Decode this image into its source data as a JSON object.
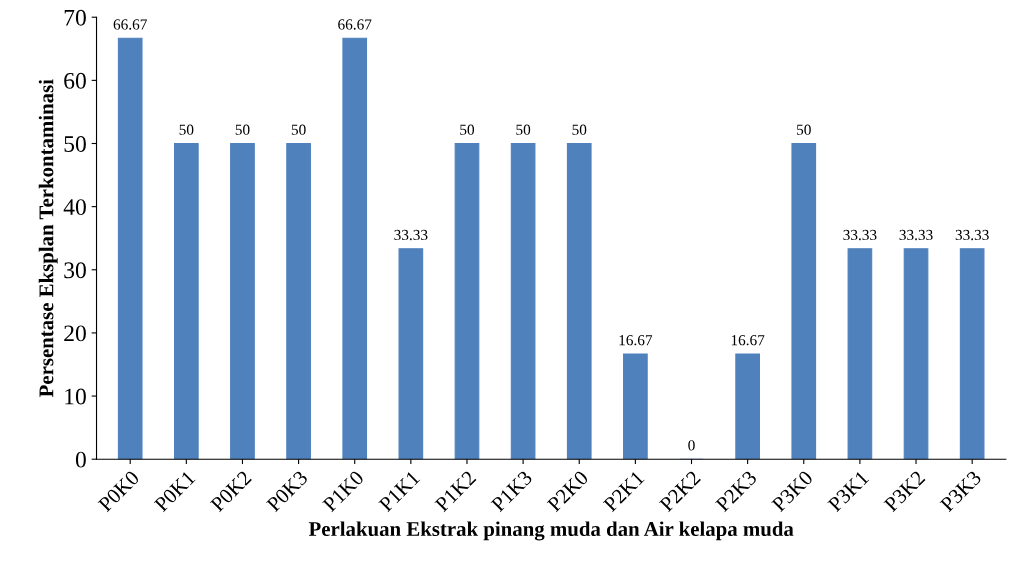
{
  "chart_data": {
    "type": "bar",
    "xlabel": "Perlakuan Ekstrak pinang muda dan Air kelapa muda",
    "ylabel": "Persentase Eksplan Terkontaminasi",
    "categories": [
      "P0K0",
      "P0K1",
      "P0K2",
      "P0K3",
      "P1K0",
      "P1K1",
      "P1K2",
      "P1K3",
      "P2K0",
      "P2K1",
      "P2K2",
      "P2K3",
      "P3K0",
      "P3K1",
      "P3K2",
      "P3K3"
    ],
    "values": [
      66.67,
      50,
      50,
      50,
      66.67,
      33.33,
      50,
      50,
      50,
      16.67,
      0,
      16.67,
      50,
      33.33,
      33.33,
      33.33
    ],
    "color": "#4f81bd",
    "ylim": [
      0,
      70
    ],
    "yticks": [
      0,
      10,
      20,
      30,
      40,
      50,
      60,
      70
    ],
    "grid": false,
    "data_labels": true
  }
}
